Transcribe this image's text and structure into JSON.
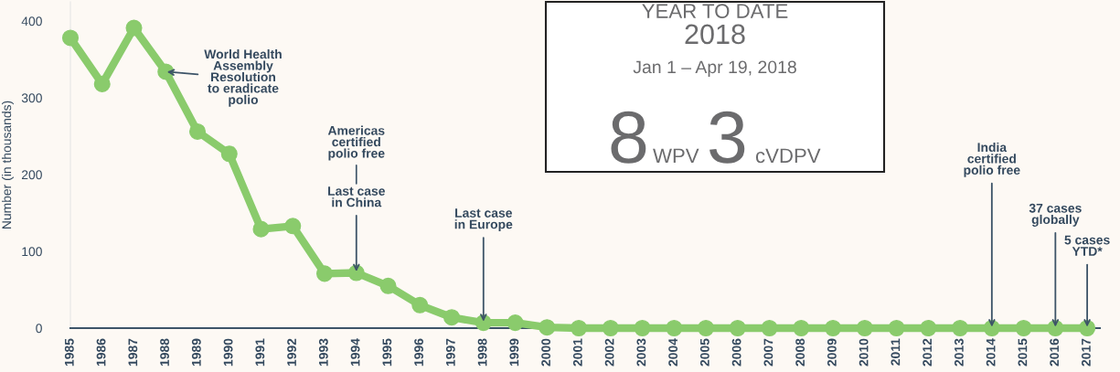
{
  "chart_data": {
    "type": "line",
    "ylabel": "Number (in thousands)",
    "categories": [
      "1985",
      "1986",
      "1987",
      "1988",
      "1989",
      "1990",
      "1991",
      "1992",
      "1993",
      "1994",
      "1995",
      "1996",
      "1997",
      "1998",
      "1999",
      "2000",
      "2001",
      "2002",
      "2003",
      "2004",
      "2005",
      "2006",
      "2007",
      "2008",
      "2009",
      "2010",
      "2011",
      "2012",
      "2013",
      "2014",
      "2015",
      "2016",
      "2017"
    ],
    "series": [
      {
        "color": "#8acb6c",
        "values": [
          378,
          318,
          391,
          334,
          256,
          227,
          129,
          133,
          71,
          72,
          55,
          30,
          14,
          7,
          7,
          1,
          0,
          0,
          0,
          0,
          0,
          0,
          0,
          0,
          0,
          0,
          0,
          0,
          0,
          0,
          0,
          0,
          0
        ]
      }
    ],
    "ylim": [
      0,
      425
    ],
    "yticks": [
      0,
      100,
      200,
      300,
      400
    ],
    "marker": "circle",
    "line_style": "solid",
    "grid": false,
    "legend": false,
    "annotations": [
      {
        "text": "World Health\nAssembly\nResolution\nto eradicate\npolio",
        "x": "1988",
        "y": 334
      },
      {
        "text": "Last case\nin China",
        "x": "1994",
        "y": 72
      },
      "Americas\ncertified\npolio free",
      {
        "text": "Last case\nin Europe",
        "x": "1998",
        "y": 7
      },
      {
        "text": "India\ncertified\npolio free",
        "x": "2014",
        "y": 0
      },
      {
        "text": "37 cases\nglobally",
        "x": "2016",
        "y": 0
      },
      {
        "text": "5 cases\nYTD*",
        "x": "2017",
        "y": 0
      },
      "YEAR TO DATE",
      "2018",
      "Jan 1 – Apr 19, 2018",
      "8",
      "WPV",
      "3",
      "cVDPV"
    ]
  }
}
